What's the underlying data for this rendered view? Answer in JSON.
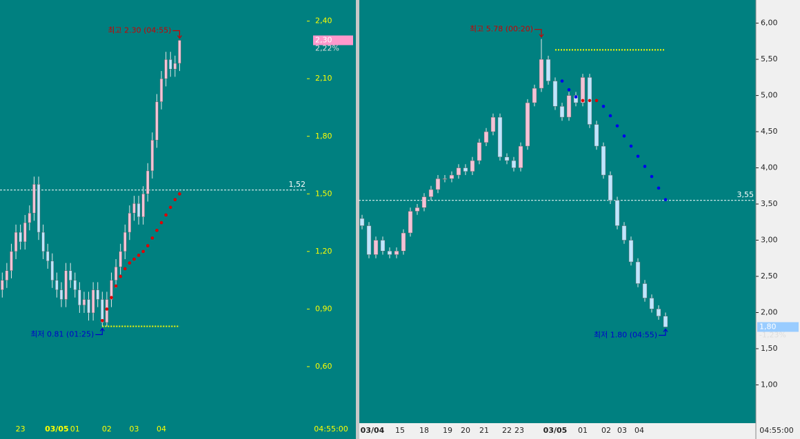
{
  "chart_data": [
    {
      "type": "candlestick",
      "up_color": "#f4c2d6",
      "down_color": "#bfe6ff",
      "ylim": [
        0.32,
        2.51
      ],
      "xlim": [
        -0.5,
        67
      ],
      "yticks": [
        {
          "value": 2.4,
          "label": "2,40"
        },
        {
          "value": 2.1,
          "label": "2,10"
        },
        {
          "value": 1.8,
          "label": "1,80"
        },
        {
          "value": 1.5,
          "label": "1,50"
        },
        {
          "value": 1.2,
          "label": "1,20"
        },
        {
          "value": 0.9,
          "label": "0,90"
        },
        {
          "value": 0.6,
          "label": "0,60"
        }
      ],
      "xticks": [
        {
          "value": 4,
          "label": "23"
        },
        {
          "value": 12,
          "label": "03/05",
          "bold": true
        },
        {
          "value": 16,
          "label": "01"
        },
        {
          "value": 23,
          "label": "02"
        },
        {
          "value": 29,
          "label": "03"
        },
        {
          "value": 35,
          "label": "04"
        }
      ],
      "time_label": "04:55:00",
      "open": [
        1.0,
        1.05,
        1.1,
        1.2,
        1.3,
        1.25,
        1.35,
        1.4,
        1.55,
        1.3,
        1.2,
        1.15,
        1.05,
        1.0,
        0.95,
        1.1,
        1.05,
        1.0,
        0.92,
        0.95,
        0.88,
        1.0,
        0.95,
        0.83,
        0.95,
        1.05,
        1.12,
        1.2,
        1.3,
        1.4,
        1.45,
        1.38,
        1.5,
        1.62,
        1.78,
        1.98,
        2.1,
        2.2,
        2.15,
        2.18
      ],
      "high": [
        1.09,
        1.14,
        1.24,
        1.34,
        1.34,
        1.39,
        1.44,
        1.59,
        1.59,
        1.34,
        1.24,
        1.19,
        1.09,
        1.04,
        1.14,
        1.14,
        1.09,
        1.04,
        0.99,
        0.99,
        1.04,
        1.04,
        0.99,
        0.99,
        1.09,
        1.16,
        1.24,
        1.34,
        1.44,
        1.49,
        1.49,
        1.54,
        1.66,
        1.82,
        2.02,
        2.14,
        2.24,
        2.24,
        2.22,
        2.3
      ],
      "low": [
        0.96,
        1.01,
        1.06,
        1.16,
        1.21,
        1.21,
        1.31,
        1.36,
        1.26,
        1.16,
        1.11,
        1.01,
        0.96,
        0.91,
        0.91,
        1.01,
        0.96,
        0.88,
        0.88,
        0.84,
        0.84,
        0.91,
        0.81,
        0.81,
        0.91,
        1.01,
        1.08,
        1.16,
        1.26,
        1.36,
        1.34,
        1.34,
        1.46,
        1.58,
        1.74,
        1.94,
        2.06,
        2.11,
        2.11,
        2.14
      ],
      "close": [
        1.05,
        1.1,
        1.2,
        1.3,
        1.25,
        1.35,
        1.4,
        1.55,
        1.3,
        1.2,
        1.15,
        1.05,
        1.0,
        0.95,
        1.1,
        1.05,
        1.0,
        0.92,
        0.95,
        0.88,
        1.0,
        0.95,
        0.83,
        0.95,
        1.05,
        1.12,
        1.2,
        1.3,
        1.4,
        1.45,
        1.38,
        1.5,
        1.62,
        1.78,
        1.98,
        2.1,
        2.2,
        2.15,
        2.18,
        2.3
      ],
      "dots": [
        {
          "color": "#e00000",
          "x": [
            22,
            23,
            24,
            25,
            26,
            27,
            28,
            29,
            30,
            31,
            32,
            33,
            34,
            35,
            36,
            37,
            38,
            39
          ],
          "values": [
            0.84,
            0.9,
            0.96,
            1.02,
            1.07,
            1.11,
            1.14,
            1.16,
            1.18,
            1.2,
            1.23,
            1.27,
            1.31,
            1.35,
            1.39,
            1.43,
            1.47,
            1.5
          ]
        }
      ],
      "levels": [
        {
          "value": 0.81,
          "from": 22,
          "to": 39,
          "color": "#ffff00"
        }
      ],
      "reference": {
        "value": 1.52,
        "label": "1,52"
      },
      "last": {
        "value": 2.3,
        "label": "2,30",
        "change": "2,22%",
        "color": "#ff99cc"
      },
      "annotations": [
        {
          "text": "최고 2.30 (04:55)",
          "color": "#cc0000",
          "at": 39,
          "value": 2.3,
          "side": "high"
        },
        {
          "text": "최저 0.81 (01:25)",
          "color": "#0000cc",
          "at": 22,
          "value": 0.81,
          "side": "low"
        }
      ]
    },
    {
      "type": "candlestick",
      "up_color": "#f4c2d6",
      "down_color": "#bfe6ff",
      "ylim": [
        0.49,
        6.32
      ],
      "xlim": [
        -0.5,
        57
      ],
      "yticks": [
        {
          "value": 6.0,
          "label": "6,00"
        },
        {
          "value": 5.5,
          "label": "5,50"
        },
        {
          "value": 5.0,
          "label": "5,00"
        },
        {
          "value": 4.5,
          "label": "4,50"
        },
        {
          "value": 4.0,
          "label": "4,00"
        },
        {
          "value": 3.5,
          "label": "3,50"
        },
        {
          "value": 3.0,
          "label": "3,00"
        },
        {
          "value": 2.5,
          "label": "2,50"
        },
        {
          "value": 2.0,
          "label": "2,00"
        },
        {
          "value": 1.5,
          "label": "1,50"
        },
        {
          "value": 1.0,
          "label": "1,00"
        }
      ],
      "xticks": [
        {
          "value": 1.5,
          "label": "03/04",
          "bold": true
        },
        {
          "value": 5.5,
          "label": "15"
        },
        {
          "value": 9,
          "label": "18"
        },
        {
          "value": 12.4,
          "label": "19"
        },
        {
          "value": 15,
          "label": "20"
        },
        {
          "value": 17.7,
          "label": "21"
        },
        {
          "value": 21,
          "label": "22"
        },
        {
          "value": 22.8,
          "label": "23"
        },
        {
          "value": 28,
          "label": "03/05",
          "bold": true
        },
        {
          "value": 32,
          "label": "01"
        },
        {
          "value": 35.4,
          "label": "02"
        },
        {
          "value": 37.7,
          "label": "03"
        },
        {
          "value": 40.2,
          "label": "04"
        }
      ],
      "time_label": "04:55:00",
      "open": [
        3.3,
        3.2,
        2.8,
        3.0,
        2.85,
        2.8,
        2.85,
        3.1,
        3.4,
        3.45,
        3.6,
        3.7,
        3.85,
        3.85,
        3.9,
        4.0,
        3.95,
        4.1,
        4.35,
        4.5,
        4.7,
        4.15,
        4.1,
        4.0,
        4.3,
        4.9,
        5.1,
        5.5,
        5.2,
        4.85,
        4.7,
        5.0,
        4.9,
        5.25,
        4.6,
        4.3,
        3.9,
        3.55,
        3.2,
        3.0,
        2.7,
        2.4,
        2.2,
        2.05,
        1.95
      ],
      "high": [
        3.35,
        3.25,
        3.05,
        3.05,
        2.9,
        2.9,
        3.15,
        3.45,
        3.5,
        3.65,
        3.75,
        3.9,
        3.9,
        3.95,
        4.05,
        4.05,
        4.15,
        4.4,
        4.55,
        4.75,
        4.75,
        4.2,
        4.15,
        4.35,
        4.95,
        5.15,
        5.78,
        5.55,
        5.25,
        4.9,
        5.05,
        5.05,
        5.3,
        5.3,
        4.65,
        4.35,
        3.95,
        3.6,
        3.25,
        3.05,
        2.75,
        2.45,
        2.25,
        2.1,
        2.0
      ],
      "low": [
        3.15,
        2.75,
        2.75,
        2.8,
        2.75,
        2.75,
        2.8,
        3.05,
        3.35,
        3.4,
        3.55,
        3.65,
        3.8,
        3.8,
        3.85,
        3.9,
        3.9,
        4.05,
        4.3,
        4.45,
        4.1,
        4.05,
        3.95,
        3.95,
        4.25,
        4.85,
        5.05,
        5.15,
        4.8,
        4.65,
        4.65,
        4.85,
        4.85,
        4.55,
        4.25,
        3.85,
        3.5,
        3.15,
        2.95,
        2.65,
        2.35,
        2.15,
        2.0,
        1.9,
        1.8
      ],
      "close": [
        3.2,
        2.8,
        3.0,
        2.85,
        2.8,
        2.85,
        3.1,
        3.4,
        3.45,
        3.6,
        3.7,
        3.85,
        3.85,
        3.9,
        4.0,
        3.95,
        4.1,
        4.35,
        4.5,
        4.7,
        4.15,
        4.1,
        4.0,
        4.3,
        4.9,
        5.1,
        5.5,
        5.2,
        4.85,
        4.7,
        5.0,
        4.9,
        5.25,
        4.6,
        4.3,
        3.9,
        3.55,
        3.2,
        3.0,
        2.7,
        2.4,
        2.2,
        2.05,
        1.95,
        1.8
      ],
      "dots": [
        {
          "color": "#0000ee",
          "x": [
            29,
            30,
            31,
            35,
            36,
            37,
            38,
            39,
            40,
            41,
            42,
            43,
            44
          ],
          "values": [
            5.2,
            5.08,
            4.98,
            4.85,
            4.72,
            4.58,
            4.44,
            4.3,
            4.16,
            4.02,
            3.88,
            3.72,
            3.56
          ]
        },
        {
          "color": "#e00000",
          "x": [
            32,
            33,
            34
          ],
          "values": [
            4.93,
            4.93,
            4.93
          ]
        }
      ],
      "levels": [
        {
          "value": 5.63,
          "from": 28,
          "to": 44,
          "color": "#ffff00"
        }
      ],
      "reference": {
        "value": 3.55,
        "label": "3,55"
      },
      "last": {
        "value": 1.8,
        "label": "1,80",
        "change": "-1,23%",
        "color": "#99ccff"
      },
      "annotations": [
        {
          "text": "최고 5.78 (00:20)",
          "color": "#cc0000",
          "at": 26,
          "value": 5.78,
          "side": "high"
        },
        {
          "text": "최저 1.80 (04:55)",
          "color": "#0000cc",
          "at": 44,
          "value": 1.8,
          "side": "low"
        }
      ]
    }
  ]
}
